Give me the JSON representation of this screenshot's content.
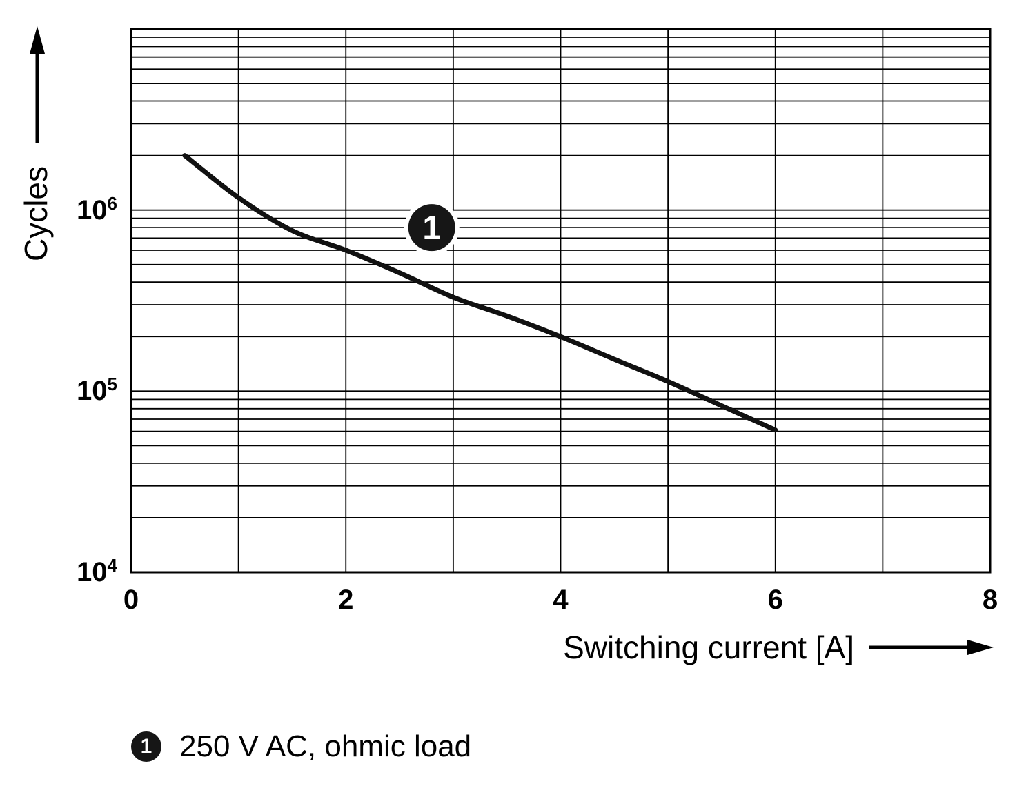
{
  "chart_data": {
    "type": "line",
    "title": "",
    "xlabel": "Switching current [A]",
    "ylabel": "Cycles",
    "xlim": [
      0,
      8
    ],
    "x_minor_step": 1,
    "x_ticks": [
      {
        "value": 0,
        "label": "0"
      },
      {
        "value": 2,
        "label": "2"
      },
      {
        "value": 4,
        "label": "4"
      },
      {
        "value": 6,
        "label": "6"
      },
      {
        "value": 8,
        "label": "8"
      }
    ],
    "y_scale": "log10",
    "ylog_exponents": [
      4,
      7
    ],
    "y_ticks": [
      {
        "value": 1000000,
        "base": "10",
        "exp": "6"
      },
      {
        "value": 100000,
        "base": "10",
        "exp": "5"
      },
      {
        "value": 10000,
        "base": "10",
        "exp": "4"
      }
    ],
    "grid": "log minor gridlines on, full border",
    "legend_position": "below chart",
    "series": [
      {
        "name": "1",
        "x": [
          0.5,
          1,
          1.5,
          2,
          2.5,
          3,
          3.5,
          4,
          4.5,
          5,
          5.5,
          6
        ],
        "y": [
          2000000,
          1170000,
          770000,
          600000,
          450000,
          330000,
          260000,
          200000,
          150000,
          113000,
          83000,
          61000
        ]
      }
    ],
    "marker": {
      "label": "1",
      "x": 2.8,
      "y": 800000
    }
  },
  "legend": {
    "marker_label": "1",
    "text": "250 V AC, ohmic load"
  },
  "colors": {
    "line": "#111111",
    "grid": "#000000",
    "marker_fill": "#161616",
    "marker_text": "#ffffff",
    "background": "#ffffff"
  }
}
